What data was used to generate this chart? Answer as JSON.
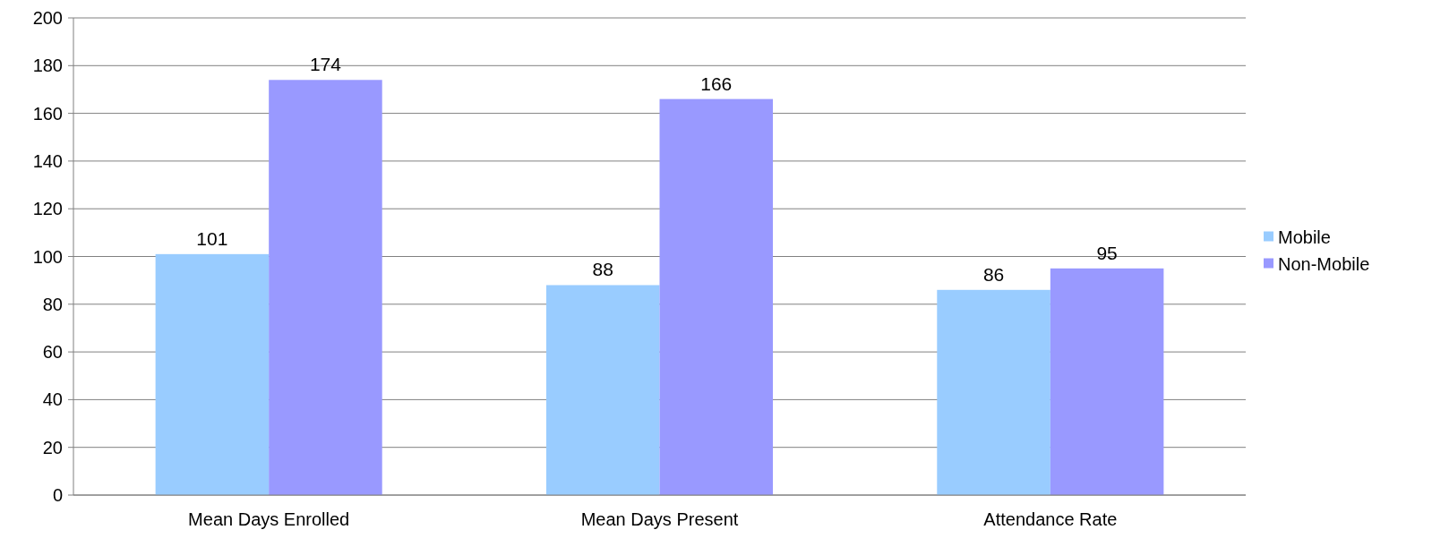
{
  "chart_data": {
    "type": "bar",
    "categories": [
      "Mean Days Enrolled",
      "Mean Days Present",
      "Attendance Rate"
    ],
    "series": [
      {
        "name": "Mobile",
        "color": "#99ccff",
        "values": [
          101,
          88,
          86
        ]
      },
      {
        "name": "Non-Mobile",
        "color": "#9999ff",
        "values": [
          174,
          166,
          95
        ]
      }
    ],
    "ylim": [
      0,
      200
    ],
    "yticks": [
      0,
      20,
      40,
      60,
      80,
      100,
      120,
      140,
      160,
      180,
      200
    ],
    "grid": "y",
    "legend": "right",
    "data_labels": true
  }
}
